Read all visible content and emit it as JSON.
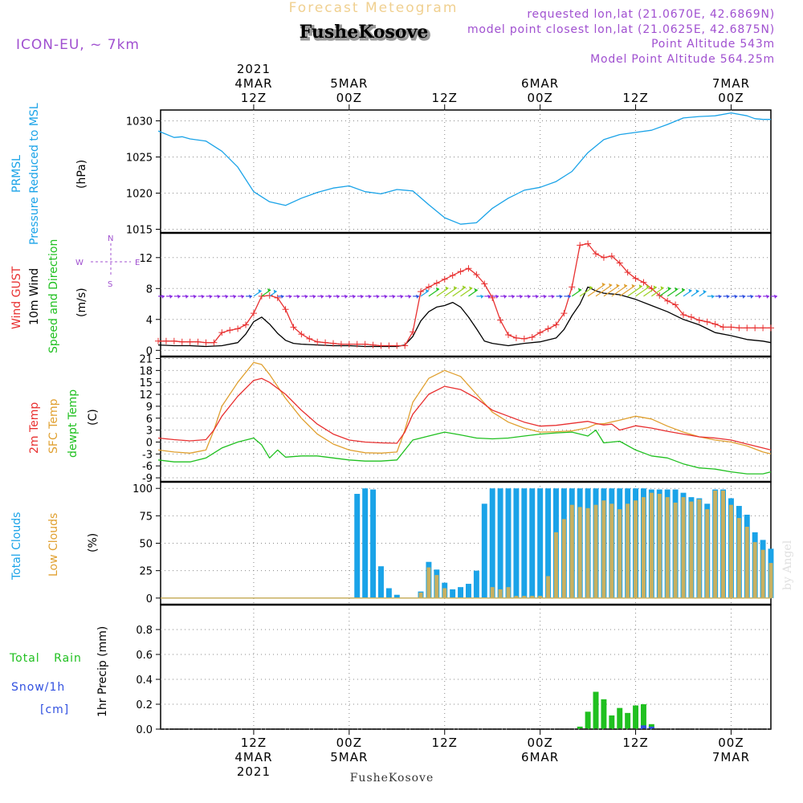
{
  "header": {
    "title": "Forecast Meteogram",
    "location": "FusheKosove",
    "model": "ICON-EU, ~ 7km",
    "requested_point": "requested lon,lat (21.0670E, 42.6869N)",
    "closest_point": "model point closest lon,lat (21.0625E, 42.6875N)",
    "point_altitude": "Point Altitude 543m",
    "model_altitude": "Model Point Altitude 564.25m",
    "watermark": "by Angel",
    "footer_location": "FusheKosove"
  },
  "colors": {
    "pressure": "#1aa3e8",
    "gust": "#e83030",
    "wind": "#000000",
    "t2m": "#e83030",
    "tsfc": "#e0a030",
    "dewpt": "#20c020",
    "total_clouds": "#1aa3e8",
    "low_clouds": "#c8b060",
    "rain": "#20c020",
    "snow": "#3050e0",
    "purple": "#a050d0"
  },
  "time_axis": {
    "top_labels": [
      {
        "h": 12,
        "lines": [
          "2021",
          "4MAR",
          "12Z"
        ]
      },
      {
        "h": 24,
        "lines": [
          "5MAR",
          "00Z"
        ]
      },
      {
        "h": 36,
        "lines": [
          "12Z"
        ]
      },
      {
        "h": 48,
        "lines": [
          "6MAR",
          "00Z"
        ]
      },
      {
        "h": 60,
        "lines": [
          "12Z"
        ]
      },
      {
        "h": 72,
        "lines": [
          "7MAR",
          "00Z"
        ]
      }
    ],
    "bottom_labels": [
      {
        "h": 12,
        "lines": [
          "12Z",
          "4MAR",
          "2021"
        ]
      },
      {
        "h": 24,
        "lines": [
          "00Z",
          "5MAR"
        ]
      },
      {
        "h": 36,
        "lines": [
          "12Z"
        ]
      },
      {
        "h": 48,
        "lines": [
          "00Z",
          "6MAR"
        ]
      },
      {
        "h": 60,
        "lines": [
          "12Z"
        ]
      },
      {
        "h": 72,
        "lines": [
          "00Z",
          "7MAR"
        ]
      }
    ],
    "start_hour": 0.3,
    "end_hour": 77
  },
  "chart_data": [
    {
      "type": "line",
      "panel": "pressure",
      "label_lines": [
        "PRMSL",
        "Pressure Reduced to MSL"
      ],
      "unit": "(hPa)",
      "ylim": [
        1014.5,
        1031.5
      ],
      "yticks": [
        1015,
        1020,
        1025,
        1030
      ],
      "series": [
        {
          "name": "PRMSL",
          "x": [
            0,
            2,
            3,
            4,
            6,
            8,
            10,
            12,
            14,
            16,
            18,
            20,
            22,
            24,
            26,
            28,
            30,
            32,
            34,
            36,
            38,
            40,
            42,
            44,
            46,
            48,
            50,
            52,
            54,
            56,
            58,
            60,
            62,
            64,
            66,
            68,
            70,
            72,
            74,
            75,
            76,
            77
          ],
          "values": [
            1028.6,
            1027.7,
            1027.8,
            1027.5,
            1027.2,
            1025.8,
            1023.6,
            1020.2,
            1018.8,
            1018.3,
            1019.3,
            1020.1,
            1020.7,
            1021.0,
            1020.2,
            1019.9,
            1020.5,
            1020.3,
            1018.4,
            1016.6,
            1015.7,
            1015.9,
            1017.9,
            1019.3,
            1020.4,
            1020.8,
            1021.6,
            1023.0,
            1025.6,
            1027.4,
            1028.1,
            1028.4,
            1028.7,
            1029.5,
            1030.4,
            1030.6,
            1030.7,
            1031.1,
            1030.7,
            1030.3,
            1030.2,
            1030.2
          ]
        }
      ]
    },
    {
      "type": "line",
      "panel": "wind",
      "label_lines": [
        "Wind GUST",
        "10m Wind",
        "Speed and Direction"
      ],
      "unit": "(m/s)",
      "compass": {
        "n": "N",
        "s": "S",
        "e": "E",
        "w": "W"
      },
      "ylim": [
        -0.8,
        15.2
      ],
      "yticks": [
        0,
        4,
        8,
        12
      ],
      "series": [
        {
          "name": "Wind GUST",
          "x": [
            0,
            1,
            2,
            3,
            4,
            5,
            6,
            7,
            8,
            9,
            10,
            11,
            12,
            13,
            14,
            15,
            16,
            17,
            18,
            19,
            20,
            21,
            22,
            23,
            24,
            25,
            26,
            27,
            28,
            29,
            30,
            31,
            32,
            33,
            34,
            35,
            36,
            37,
            38,
            39,
            40,
            41,
            42,
            43,
            44,
            45,
            46,
            47,
            48,
            49,
            50,
            51,
            52,
            53,
            54,
            55,
            56,
            57,
            58,
            59,
            60,
            61,
            62,
            63,
            64,
            65,
            66,
            67,
            68,
            69,
            70,
            71,
            72,
            73,
            74,
            75,
            76,
            77
          ],
          "values": [
            1.2,
            1.2,
            1.2,
            1.1,
            1.1,
            1.1,
            1.0,
            1.0,
            2.3,
            2.6,
            2.8,
            3.3,
            4.8,
            7.0,
            7.1,
            6.8,
            5.3,
            3.0,
            2.1,
            1.5,
            1.1,
            1.0,
            0.9,
            0.8,
            0.8,
            0.8,
            0.8,
            0.7,
            0.6,
            0.6,
            0.6,
            0.6,
            2.4,
            7.6,
            8.2,
            8.7,
            9.2,
            9.7,
            10.2,
            10.6,
            9.8,
            8.6,
            6.8,
            3.9,
            2.0,
            1.6,
            1.5,
            1.7,
            2.3,
            2.8,
            3.3,
            4.8,
            8.2,
            13.6,
            13.8,
            12.5,
            12.0,
            12.2,
            11.3,
            10.1,
            9.3,
            8.8,
            8.0,
            7.1,
            6.4,
            5.9,
            4.6,
            4.3,
            3.9,
            3.7,
            3.4,
            3.0,
            3.0,
            2.9,
            2.9,
            2.9,
            2.9,
            2.9
          ]
        },
        {
          "name": "10m Wind",
          "x": [
            0,
            2,
            4,
            6,
            8,
            10,
            11,
            12,
            13,
            14,
            15,
            16,
            17,
            18,
            20,
            22,
            24,
            26,
            28,
            30,
            31,
            32,
            33,
            34,
            35,
            36,
            37,
            38,
            39,
            40,
            41,
            42,
            44,
            46,
            48,
            50,
            51,
            52,
            53,
            54,
            55,
            56,
            58,
            60,
            62,
            64,
            66,
            68,
            70,
            72,
            74,
            76,
            77
          ],
          "values": [
            0.7,
            0.6,
            0.6,
            0.5,
            0.6,
            1.0,
            2.1,
            3.7,
            4.3,
            3.4,
            2.2,
            1.3,
            0.9,
            0.8,
            0.7,
            0.6,
            0.6,
            0.5,
            0.5,
            0.5,
            0.7,
            1.8,
            3.8,
            5.0,
            5.6,
            5.8,
            6.2,
            5.6,
            4.3,
            2.8,
            1.2,
            0.9,
            0.6,
            0.9,
            1.1,
            1.6,
            2.7,
            4.5,
            6.0,
            8.2,
            7.7,
            7.4,
            7.2,
            6.6,
            5.8,
            5.0,
            4.0,
            3.3,
            2.3,
            1.9,
            1.4,
            1.2,
            1.0
          ]
        }
      ]
    },
    {
      "type": "line",
      "panel": "temperature",
      "label_lines": [
        "2m Temp",
        "SFC Temp",
        "dewpt Temp"
      ],
      "unit": "(C)",
      "ylim": [
        -10,
        21.5
      ],
      "yticks": [
        -9,
        -6,
        -3,
        0,
        3,
        6,
        9,
        12,
        15,
        18,
        21
      ],
      "series": [
        {
          "name": "2m Temp",
          "x": [
            0,
            2,
            4,
            6,
            7,
            8,
            10,
            12,
            13,
            14,
            16,
            18,
            20,
            22,
            24,
            26,
            28,
            30,
            31,
            32,
            34,
            36,
            38,
            40,
            42,
            44,
            46,
            48,
            50,
            52,
            54,
            55,
            56,
            57,
            58,
            60,
            62,
            64,
            66,
            68,
            70,
            72,
            74,
            76,
            77
          ],
          "values": [
            1.0,
            0.6,
            0.3,
            0.6,
            3.0,
            6.5,
            11.5,
            15.5,
            16.0,
            15.0,
            12.0,
            8.0,
            4.5,
            2.0,
            0.5,
            0.0,
            -0.2,
            -0.3,
            2.5,
            7.0,
            12.0,
            14.0,
            13.2,
            11.0,
            8.0,
            6.5,
            5.0,
            4.0,
            4.2,
            4.7,
            5.2,
            4.7,
            4.3,
            4.5,
            3.0,
            4.1,
            3.5,
            2.7,
            2.0,
            1.3,
            1.0,
            0.5,
            -0.5,
            -1.5,
            -2.0
          ]
        },
        {
          "name": "SFC Temp",
          "x": [
            0,
            2,
            4,
            6,
            7,
            8,
            10,
            12,
            13,
            14,
            16,
            18,
            20,
            22,
            24,
            26,
            28,
            30,
            31,
            32,
            34,
            36,
            38,
            40,
            42,
            44,
            46,
            48,
            50,
            52,
            54,
            55,
            56,
            58,
            60,
            62,
            64,
            66,
            68,
            70,
            72,
            74,
            76,
            77
          ],
          "values": [
            -2.0,
            -2.5,
            -2.8,
            -2.0,
            3.0,
            9.0,
            15.0,
            20.0,
            19.5,
            17.0,
            11.0,
            6.0,
            2.0,
            -0.5,
            -2.0,
            -2.7,
            -2.8,
            -2.5,
            3.0,
            10.0,
            16.0,
            18.0,
            16.5,
            12.0,
            7.5,
            5.0,
            3.5,
            2.5,
            2.6,
            2.8,
            3.6,
            4.5,
            4.6,
            5.5,
            6.5,
            5.8,
            4.0,
            2.5,
            1.3,
            0.5,
            0.0,
            -1.0,
            -2.5,
            -3.0
          ]
        },
        {
          "name": "dewpt Temp",
          "x": [
            0,
            2,
            4,
            6,
            8,
            10,
            12,
            13,
            14,
            15,
            16,
            18,
            20,
            22,
            24,
            26,
            28,
            30,
            32,
            34,
            36,
            38,
            40,
            42,
            44,
            46,
            48,
            50,
            52,
            54,
            55,
            56,
            57,
            58,
            60,
            62,
            64,
            66,
            68,
            70,
            72,
            74,
            76,
            77
          ],
          "values": [
            -4.5,
            -5.0,
            -5.0,
            -4.0,
            -1.5,
            0.0,
            1.0,
            -0.7,
            -4.0,
            -2.0,
            -3.8,
            -3.5,
            -3.5,
            -4.0,
            -4.5,
            -4.8,
            -4.8,
            -4.5,
            0.5,
            1.5,
            2.5,
            1.8,
            1.0,
            0.8,
            1.0,
            1.5,
            2.0,
            2.3,
            2.5,
            1.5,
            3.0,
            -0.2,
            0.0,
            0.2,
            -2.0,
            -3.5,
            -4.0,
            -5.5,
            -6.5,
            -6.8,
            -7.5,
            -8.0,
            -8.0,
            -7.5
          ]
        }
      ]
    },
    {
      "type": "bar",
      "panel": "clouds",
      "label_lines": [
        "Total Clouds",
        "Low Clouds"
      ],
      "unit": "(%)",
      "ylim": [
        -6,
        106
      ],
      "yticks": [
        0,
        25,
        50,
        75,
        100
      ],
      "x": [
        25,
        26,
        27,
        28,
        29,
        30,
        31,
        32,
        33,
        34,
        35,
        36,
        37,
        38,
        39,
        40,
        41,
        42,
        43,
        44,
        45,
        46,
        47,
        48,
        49,
        50,
        51,
        52,
        53,
        54,
        55,
        56,
        57,
        58,
        59,
        60,
        61,
        62,
        63,
        64,
        65,
        66,
        67,
        68,
        69,
        70,
        71,
        72,
        73,
        74,
        75,
        76,
        77
      ],
      "series": [
        {
          "name": "Total Clouds",
          "values": [
            95,
            100,
            99,
            29,
            9,
            3,
            0,
            0,
            6,
            33,
            26,
            14,
            8,
            10,
            13,
            25,
            86,
            100,
            100,
            100,
            100,
            100,
            100,
            100,
            100,
            100,
            100,
            100,
            100,
            100,
            100,
            100,
            100,
            100,
            100,
            100,
            100,
            99,
            99,
            99,
            99,
            96,
            92,
            91,
            86,
            99,
            99,
            91,
            84,
            76,
            60,
            53,
            45
          ]
        },
        {
          "name": "Low Clouds",
          "values": [
            0,
            0,
            0,
            0,
            0,
            0,
            0,
            0,
            5,
            28,
            21,
            9,
            0,
            0,
            0,
            0,
            0,
            10,
            8,
            10,
            2,
            2,
            2,
            2,
            20,
            60,
            72,
            85,
            83,
            82,
            85,
            89,
            86,
            81,
            86,
            89,
            92,
            96,
            95,
            92,
            87,
            92,
            88,
            90,
            81,
            98,
            98,
            85,
            73,
            65,
            51,
            44,
            32
          ]
        }
      ]
    },
    {
      "type": "bar",
      "panel": "precip",
      "label_lines": [
        "Total Rain",
        "Snow/1h",
        "[cm]"
      ],
      "unit": "1hr Precip (mm)",
      "ylim": [
        0,
        1.0
      ],
      "yticks": [
        0,
        0.2,
        0.4,
        0.6,
        0.8
      ],
      "x": [
        53,
        54,
        55,
        56,
        57,
        58,
        59,
        60,
        61,
        62,
        63
      ],
      "series": [
        {
          "name": "Total Rain",
          "values": [
            0.02,
            0.14,
            0.3,
            0.24,
            0.11,
            0.17,
            0.13,
            0.19,
            0.2,
            0.04,
            0.0
          ]
        },
        {
          "name": "Snow/1h",
          "values": [
            0,
            0,
            0,
            0,
            0,
            0,
            0,
            0,
            0.03,
            0.02,
            0
          ]
        }
      ]
    }
  ]
}
